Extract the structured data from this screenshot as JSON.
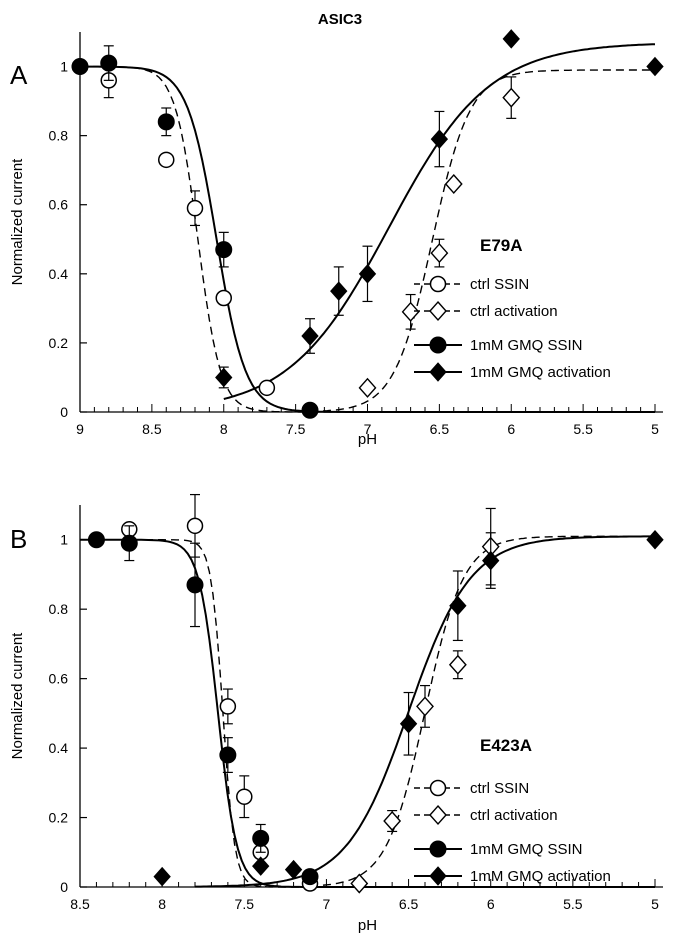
{
  "figure": {
    "title": "ASIC3"
  },
  "chart_data": [
    {
      "type": "scatter",
      "panel_letter": "A",
      "mutant": "E79A",
      "xlabel": "pH",
      "ylabel": "Normalized current",
      "xlim": [
        9,
        5
      ],
      "ylim": [
        0,
        1.1
      ],
      "x_ticks": [
        "9",
        "8.5",
        "8",
        "7.5",
        "7",
        "6.5",
        "6",
        "5.5",
        "5"
      ],
      "y_ticks": [
        "0",
        "0.2",
        "0.4",
        "0.6",
        "0.8",
        "1"
      ],
      "x_minor_step": 0.1,
      "legend_position": "center-right",
      "series": [
        {
          "name": "ctrl SSIN",
          "marker": "open-circle",
          "line": "dashed",
          "points": [
            [
              9.0,
              1.0,
              0
            ],
            [
              8.8,
              0.96,
              0.05
            ],
            [
              8.4,
              0.73,
              0
            ],
            [
              8.2,
              0.59,
              0.05
            ],
            [
              8.0,
              0.33,
              0
            ],
            [
              7.7,
              0.07,
              0
            ],
            [
              7.4,
              0.005,
              0
            ]
          ],
          "fit": {
            "type": "ssin",
            "top": 1.0,
            "bottom": 0.0,
            "pH50": 8.18,
            "n": 5.5
          }
        },
        {
          "name": "ctrl activation",
          "marker": "open-diamond",
          "line": "dashed",
          "points": [
            [
              7.0,
              0.07,
              0
            ],
            [
              6.7,
              0.29,
              0.05
            ],
            [
              6.5,
              0.46,
              0.04
            ],
            [
              6.4,
              0.66,
              0
            ],
            [
              6.0,
              0.91,
              0.06
            ]
          ],
          "fit": {
            "type": "activation",
            "top": 0.99,
            "bottom": 0.0,
            "pH50": 6.55,
            "n": 3.3,
            "from": 7.4,
            "to": 5.0
          }
        },
        {
          "name": "1mM GMQ SSIN",
          "marker": "filled-circle",
          "line": "solid",
          "points": [
            [
              9.0,
              1.0,
              0
            ],
            [
              8.8,
              1.01,
              0.05
            ],
            [
              8.4,
              0.84,
              0.04
            ],
            [
              8.0,
              0.47,
              0.05
            ],
            [
              7.4,
              0.005,
              0
            ]
          ],
          "fit": {
            "type": "ssin",
            "top": 1.0,
            "bottom": 0.0,
            "pH50": 8.05,
            "n": 4.3
          }
        },
        {
          "name": "1mM GMQ activation",
          "marker": "filled-diamond",
          "line": "solid",
          "points": [
            [
              8.0,
              0.1,
              0.03
            ],
            [
              7.4,
              0.22,
              0.05
            ],
            [
              7.2,
              0.35,
              0.07
            ],
            [
              7.0,
              0.4,
              0.08
            ],
            [
              6.5,
              0.79,
              0.08
            ],
            [
              6.0,
              1.08,
              0
            ],
            [
              5.0,
              1.0,
              0
            ]
          ],
          "fit": {
            "type": "activation",
            "top": 1.07,
            "bottom": 0.0,
            "pH50": 6.85,
            "n": 1.25,
            "from": 8.0,
            "to": 5.0
          }
        }
      ]
    },
    {
      "type": "scatter",
      "panel_letter": "B",
      "mutant": "E423A",
      "xlabel": "pH",
      "ylabel": "Normalized current",
      "xlim": [
        8.5,
        5
      ],
      "ylim": [
        0,
        1.1
      ],
      "x_ticks": [
        "8.5",
        "8",
        "7.5",
        "7",
        "6.5",
        "6",
        "5.5",
        "5"
      ],
      "y_ticks": [
        "0",
        "0.2",
        "0.4",
        "0.6",
        "0.8",
        "1"
      ],
      "x_minor_step": 0.1,
      "legend_position": "center-right",
      "series": [
        {
          "name": "ctrl SSIN",
          "marker": "open-circle",
          "line": "dashed",
          "points": [
            [
              8.2,
              1.03,
              0
            ],
            [
              7.8,
              1.04,
              0.09
            ],
            [
              7.6,
              0.52,
              0.05
            ],
            [
              7.5,
              0.26,
              0.06
            ],
            [
              7.4,
              0.1,
              0.03
            ],
            [
              7.1,
              0.01,
              0
            ]
          ],
          "fit": {
            "type": "ssin",
            "top": 1.0,
            "bottom": 0.0,
            "pH50": 7.63,
            "n": 12
          }
        },
        {
          "name": "ctrl activation",
          "marker": "open-diamond",
          "line": "dashed",
          "points": [
            [
              6.8,
              0.01,
              0
            ],
            [
              6.6,
              0.19,
              0.03
            ],
            [
              6.4,
              0.52,
              0.06
            ],
            [
              6.2,
              0.64,
              0.04
            ],
            [
              6.0,
              0.98,
              0.11
            ]
          ],
          "fit": {
            "type": "activation",
            "top": 1.01,
            "bottom": 0.0,
            "pH50": 6.4,
            "n": 3.7,
            "from": 7.1,
            "to": 5.0
          }
        },
        {
          "name": "1mM GMQ SSIN",
          "marker": "filled-circle",
          "line": "solid",
          "points": [
            [
              8.4,
              1.0,
              0
            ],
            [
              8.2,
              0.99,
              0.05
            ],
            [
              7.8,
              0.87,
              0.12
            ],
            [
              7.6,
              0.38,
              0.05
            ],
            [
              7.4,
              0.14,
              0.04
            ],
            [
              7.1,
              0.03,
              0
            ]
          ],
          "fit": {
            "type": "ssin",
            "top": 1.0,
            "bottom": 0.0,
            "pH50": 7.66,
            "n": 7.5
          }
        },
        {
          "name": "1mM GMQ activation",
          "marker": "filled-diamond",
          "line": "solid",
          "points": [
            [
              8.0,
              0.03,
              0
            ],
            [
              7.4,
              0.06,
              0
            ],
            [
              7.2,
              0.05,
              0
            ],
            [
              6.5,
              0.47,
              0.09
            ],
            [
              6.2,
              0.81,
              0.1
            ],
            [
              6.0,
              0.94,
              0.08
            ],
            [
              5.0,
              1.0,
              0
            ]
          ],
          "fit": {
            "type": "activation",
            "top": 1.01,
            "bottom": 0.0,
            "pH50": 6.5,
            "n": 2.3,
            "from": 7.8,
            "to": 5.0
          }
        }
      ]
    }
  ]
}
